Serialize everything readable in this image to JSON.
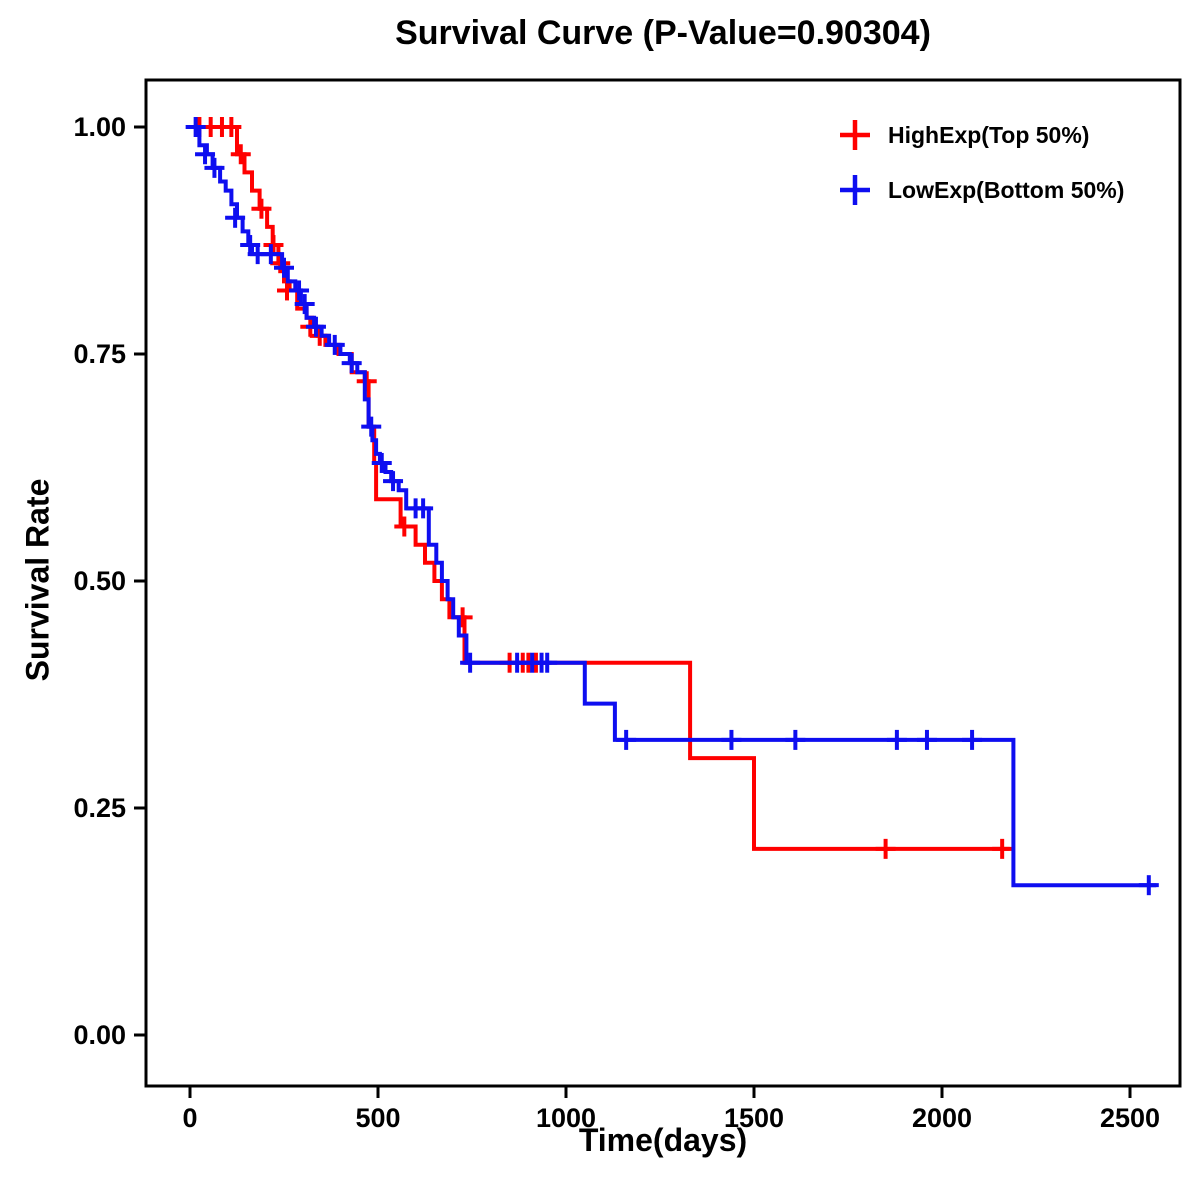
{
  "chart_data": {
    "type": "line",
    "subtype": "kaplan-meier-step-survival",
    "title": "Survival Curve (P-Value=0.90304)",
    "xlabel": "Time(days)",
    "ylabel": "Survival Rate",
    "xlim": [
      0,
      2500
    ],
    "ylim": [
      0,
      1
    ],
    "grid": false,
    "legend_position": "top-right",
    "xticks": [
      0,
      500,
      1000,
      1500,
      2000,
      2500
    ],
    "yticks": [
      {
        "v": 0.0,
        "label": "0.00"
      },
      {
        "v": 0.25,
        "label": "0.25"
      },
      {
        "v": 0.5,
        "label": "0.50"
      },
      {
        "v": 0.75,
        "label": "0.75"
      },
      {
        "v": 1.0,
        "label": "1.00"
      }
    ],
    "series": [
      {
        "name": "HighExp(Top 50%)",
        "color": "#ff0000",
        "steps": [
          [
            0,
            1.0
          ],
          [
            125,
            0.97
          ],
          [
            145,
            0.95
          ],
          [
            165,
            0.93
          ],
          [
            185,
            0.91
          ],
          [
            205,
            0.89
          ],
          [
            220,
            0.87
          ],
          [
            235,
            0.85
          ],
          [
            250,
            0.83
          ],
          [
            265,
            0.82
          ],
          [
            285,
            0.8
          ],
          [
            310,
            0.79
          ],
          [
            325,
            0.78
          ],
          [
            340,
            0.77
          ],
          [
            360,
            0.76
          ],
          [
            395,
            0.75
          ],
          [
            430,
            0.73
          ],
          [
            465,
            0.72
          ],
          [
            475,
            0.67
          ],
          [
            490,
            0.63
          ],
          [
            495,
            0.59
          ],
          [
            560,
            0.56
          ],
          [
            600,
            0.54
          ],
          [
            625,
            0.52
          ],
          [
            650,
            0.5
          ],
          [
            670,
            0.48
          ],
          [
            690,
            0.46
          ],
          [
            730,
            0.41
          ],
          [
            1330,
            0.305
          ],
          [
            1500,
            0.205
          ],
          [
            2180,
            0.205
          ]
        ],
        "censors": [
          [
            25,
            1.0
          ],
          [
            55,
            1.0
          ],
          [
            85,
            1.0
          ],
          [
            110,
            1.0
          ],
          [
            135,
            0.97
          ],
          [
            190,
            0.91
          ],
          [
            222,
            0.87
          ],
          [
            240,
            0.85
          ],
          [
            258,
            0.82
          ],
          [
            320,
            0.78
          ],
          [
            345,
            0.77
          ],
          [
            470,
            0.72
          ],
          [
            570,
            0.56
          ],
          [
            725,
            0.46
          ],
          [
            850,
            0.41
          ],
          [
            885,
            0.41
          ],
          [
            900,
            0.41
          ],
          [
            920,
            0.41
          ],
          [
            1850,
            0.205
          ],
          [
            2160,
            0.205
          ]
        ]
      },
      {
        "name": "LowExp(Bottom 50%)",
        "color": "#0e0ef0",
        "steps": [
          [
            0,
            1.0
          ],
          [
            25,
            0.98
          ],
          [
            45,
            0.97
          ],
          [
            60,
            0.955
          ],
          [
            80,
            0.94
          ],
          [
            95,
            0.93
          ],
          [
            110,
            0.915
          ],
          [
            125,
            0.9
          ],
          [
            140,
            0.885
          ],
          [
            155,
            0.87
          ],
          [
            165,
            0.86
          ],
          [
            245,
            0.845
          ],
          [
            260,
            0.83
          ],
          [
            280,
            0.82
          ],
          [
            295,
            0.805
          ],
          [
            310,
            0.79
          ],
          [
            330,
            0.78
          ],
          [
            350,
            0.77
          ],
          [
            370,
            0.76
          ],
          [
            400,
            0.75
          ],
          [
            425,
            0.74
          ],
          [
            445,
            0.73
          ],
          [
            465,
            0.7
          ],
          [
            475,
            0.67
          ],
          [
            485,
            0.655
          ],
          [
            495,
            0.64
          ],
          [
            505,
            0.63
          ],
          [
            520,
            0.62
          ],
          [
            535,
            0.61
          ],
          [
            555,
            0.6
          ],
          [
            575,
            0.58
          ],
          [
            635,
            0.54
          ],
          [
            655,
            0.52
          ],
          [
            670,
            0.5
          ],
          [
            685,
            0.48
          ],
          [
            700,
            0.46
          ],
          [
            715,
            0.44
          ],
          [
            735,
            0.41
          ],
          [
            1050,
            0.365
          ],
          [
            1130,
            0.325
          ],
          [
            2190,
            0.165
          ],
          [
            2570,
            0.165
          ]
        ],
        "censors": [
          [
            15,
            1.0
          ],
          [
            40,
            0.97
          ],
          [
            65,
            0.955
          ],
          [
            120,
            0.9
          ],
          [
            160,
            0.87
          ],
          [
            180,
            0.86
          ],
          [
            215,
            0.86
          ],
          [
            250,
            0.845
          ],
          [
            290,
            0.82
          ],
          [
            305,
            0.805
          ],
          [
            335,
            0.78
          ],
          [
            385,
            0.76
          ],
          [
            430,
            0.74
          ],
          [
            482,
            0.67
          ],
          [
            510,
            0.63
          ],
          [
            540,
            0.61
          ],
          [
            600,
            0.58
          ],
          [
            620,
            0.58
          ],
          [
            745,
            0.41
          ],
          [
            870,
            0.41
          ],
          [
            910,
            0.41
          ],
          [
            935,
            0.41
          ],
          [
            950,
            0.41
          ],
          [
            1160,
            0.325
          ],
          [
            1440,
            0.325
          ],
          [
            1610,
            0.325
          ],
          [
            1880,
            0.325
          ],
          [
            1960,
            0.325
          ],
          [
            2080,
            0.325
          ],
          [
            2550,
            0.165
          ]
        ]
      }
    ]
  }
}
